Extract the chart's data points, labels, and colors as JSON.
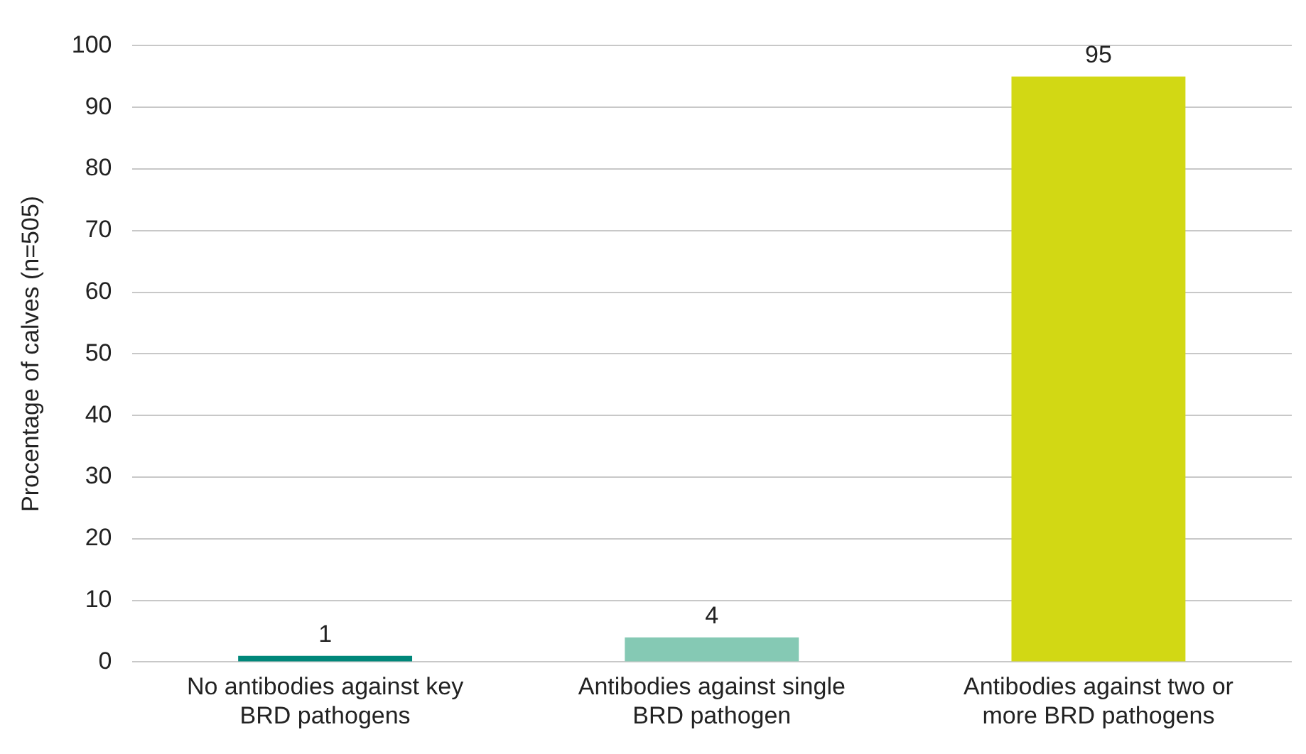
{
  "chart_data": {
    "type": "bar",
    "ylabel": "Procentage of calves (n=505)",
    "categories": [
      "No antibodies against key BRD pathogens",
      "Antibodies against single BRD pathogen",
      "Antibodies against two or more BRD pathogens"
    ],
    "values": [
      1,
      4,
      95
    ],
    "colors": [
      "#00877a",
      "#85c9b4",
      "#d2d814"
    ],
    "ylim": [
      0,
      100
    ],
    "yticks": [
      0,
      10,
      20,
      30,
      40,
      50,
      60,
      70,
      80,
      90,
      100
    ],
    "grid": "y",
    "data_labels": true,
    "legend": false
  }
}
